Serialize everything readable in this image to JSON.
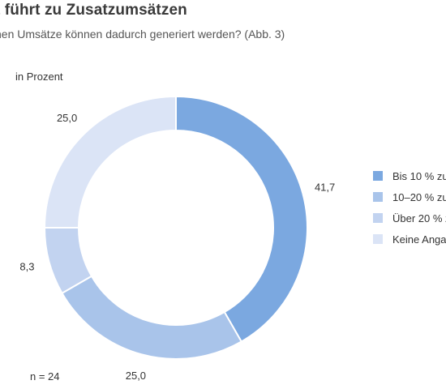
{
  "title": "t führt zu Zusatzumsätzen",
  "subtitle": "nen Umsätze können dadurch generiert werden? (Abb. 3)",
  "unit_label": "in Prozent",
  "sample_note": "n = 24",
  "colors": {
    "background": "#ffffff",
    "slice_1": "#7ba8e0",
    "slice_2": "#a9c4ea",
    "slice_3": "#c2d3f0",
    "slice_4": "#dbe4f6"
  },
  "chart_data": {
    "type": "pie",
    "variant": "donut",
    "unit": "in Prozent",
    "categories": [
      "Bis 10 % zu",
      "10–20 % zu",
      "Über 20 % z",
      "Keine Anga"
    ],
    "values": [
      41.7,
      25.0,
      8.3,
      25.0
    ],
    "value_labels": [
      "41,7",
      "25,0",
      "8,3",
      "25,0"
    ],
    "start_angle": "12 o'clock",
    "direction": "clockwise",
    "legend_position": "right"
  }
}
